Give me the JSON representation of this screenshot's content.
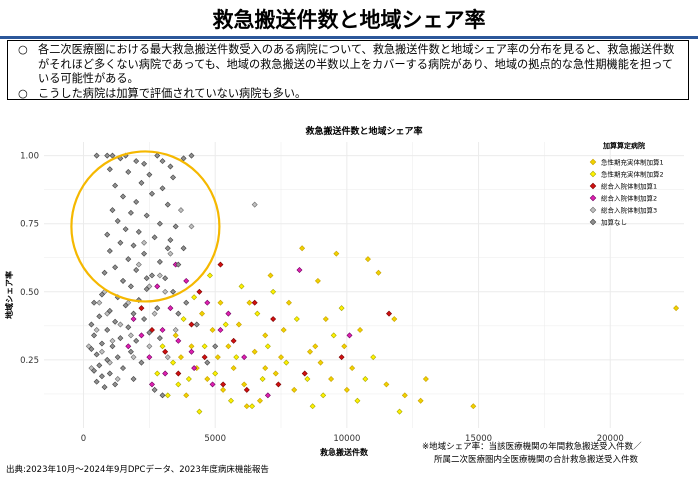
{
  "title": "救急搬送件数と地域シェア率",
  "notes": [
    {
      "mark": "○",
      "text": "各二次医療圏における最大救急搬送件数受入のある病院について、救急搬送件数と地域シェア率の分布を見ると、救急搬送件数がそれほど多くない病院であっても、地域の救急搬送の半数以上をカバーする病院があり、地域の拠点的な急性期機能を担っている可能性がある。"
    },
    {
      "mark": "○",
      "text": "こうした病院は加算で評価されていない病院も多い。"
    }
  ],
  "footer": {
    "source": "出典:2023年10月～2024年9月DPCデータ、2023年度病床機能報告",
    "definition_line1": "※地域シェア率：当該医療機関の年間救急搬送受入件数／",
    "definition_line2": "所属二次医療圏内全医療機関の合計救急搬送受入件数"
  },
  "colors": {
    "title_rule": "#2b579a",
    "highlight_circle": "#f5b800",
    "grid": "#ebebeb"
  },
  "chart_data": {
    "type": "scatter",
    "title": "救急搬送件数と地域シェア率",
    "xlabel": "救急搬送件数",
    "ylabel": "地域シェア率",
    "xlim": [
      -1500,
      22800
    ],
    "ylim": [
      0.0,
      1.05
    ],
    "x_ticks": [
      0,
      5000,
      10000,
      15000,
      20000
    ],
    "y_ticks": [
      0.25,
      0.5,
      0.75,
      1.0
    ],
    "y_tick_labels": [
      "0.25",
      "0.50",
      "0.75",
      "1.00"
    ],
    "grid": true,
    "legend_position": "top-right",
    "legend_title": "加算算定病院",
    "series": [
      {
        "name": "急性期充実体制加算1",
        "color": "#c8a000",
        "fill": "#f0d200",
        "points": [
          [
            22500,
            0.44
          ],
          [
            14800,
            0.08
          ],
          [
            13000,
            0.18
          ],
          [
            12800,
            0.1
          ],
          [
            12200,
            0.12
          ],
          [
            11500,
            0.16
          ],
          [
            11200,
            0.57
          ],
          [
            10800,
            0.62
          ],
          [
            10500,
            0.36
          ],
          [
            10200,
            0.22
          ],
          [
            9900,
            0.3
          ],
          [
            9600,
            0.64
          ],
          [
            9400,
            0.18
          ],
          [
            9200,
            0.4
          ],
          [
            8900,
            0.54
          ],
          [
            8600,
            0.28
          ],
          [
            8300,
            0.66
          ],
          [
            8000,
            0.14
          ],
          [
            7800,
            0.46
          ],
          [
            7500,
            0.26
          ],
          [
            7300,
            0.2
          ],
          [
            7100,
            0.56
          ],
          [
            6900,
            0.34
          ],
          [
            6700,
            0.1
          ],
          [
            6500,
            0.28
          ],
          [
            6300,
            0.46
          ],
          [
            6100,
            0.16
          ],
          [
            5900,
            0.38
          ],
          [
            5700,
            0.22
          ],
          [
            5500,
            0.3
          ],
          [
            5300,
            0.14
          ],
          [
            5100,
            0.26
          ],
          [
            4900,
            0.36
          ],
          [
            4700,
            0.18
          ],
          [
            4500,
            0.42
          ],
          [
            4300,
            0.22
          ],
          [
            4100,
            0.3
          ],
          [
            3900,
            0.12
          ],
          [
            3700,
            0.26
          ],
          [
            3500,
            0.34
          ],
          [
            6900,
            0.22
          ],
          [
            8800,
            0.3
          ],
          [
            10000,
            0.14
          ],
          [
            5200,
            0.46
          ],
          [
            6200,
            0.08
          ],
          [
            7600,
            0.36
          ],
          [
            9000,
            0.24
          ],
          [
            11800,
            0.4
          ]
        ]
      },
      {
        "name": "急性期充実体制加算2",
        "color": "#a8a800",
        "fill": "#fff200",
        "points": [
          [
            12000,
            0.06
          ],
          [
            11000,
            0.26
          ],
          [
            10400,
            0.1
          ],
          [
            9800,
            0.44
          ],
          [
            9100,
            0.12
          ],
          [
            8500,
            0.18
          ],
          [
            8100,
            0.4
          ],
          [
            7700,
            0.24
          ],
          [
            7200,
            0.5
          ],
          [
            6800,
            0.18
          ],
          [
            6400,
            0.08
          ],
          [
            6000,
            0.52
          ],
          [
            5600,
            0.1
          ],
          [
            5400,
            0.38
          ],
          [
            5000,
            0.2
          ],
          [
            4800,
            0.56
          ],
          [
            4600,
            0.3
          ],
          [
            4400,
            0.06
          ],
          [
            4200,
            0.48
          ],
          [
            4000,
            0.18
          ],
          [
            3800,
            0.4
          ],
          [
            3600,
            0.16
          ],
          [
            3400,
            0.24
          ],
          [
            3200,
            0.12
          ],
          [
            3000,
            0.3
          ],
          [
            2800,
            0.2
          ],
          [
            7000,
            0.3
          ],
          [
            8700,
            0.08
          ],
          [
            9500,
            0.34
          ],
          [
            6600,
            0.42
          ],
          [
            5800,
            0.26
          ],
          [
            10700,
            0.18
          ]
        ]
      },
      {
        "name": "総合入院体制加算1",
        "color": "#7a0000",
        "fill": "#d01010",
        "points": [
          [
            11600,
            0.42
          ],
          [
            9800,
            0.26
          ],
          [
            8400,
            0.2
          ],
          [
            7400,
            0.16
          ],
          [
            6500,
            0.46
          ],
          [
            5700,
            0.32
          ],
          [
            5300,
            0.16
          ],
          [
            4600,
            0.26
          ],
          [
            4100,
            0.38
          ],
          [
            3600,
            0.2
          ],
          [
            3100,
            0.28
          ],
          [
            2600,
            0.36
          ],
          [
            2200,
            0.44
          ],
          [
            5200,
            0.6
          ],
          [
            4400,
            0.5
          ],
          [
            6200,
            0.14
          ],
          [
            7200,
            0.4
          ]
        ]
      },
      {
        "name": "総合入院体制加算2",
        "color": "#700060",
        "fill": "#e020b0",
        "points": [
          [
            10100,
            0.34
          ],
          [
            8200,
            0.58
          ],
          [
            7000,
            0.12
          ],
          [
            6100,
            0.26
          ],
          [
            5200,
            0.36
          ],
          [
            4700,
            0.46
          ],
          [
            4200,
            0.22
          ],
          [
            3900,
            0.54
          ],
          [
            3600,
            0.32
          ],
          [
            3300,
            0.44
          ],
          [
            3000,
            0.36
          ],
          [
            2800,
            0.52
          ],
          [
            2500,
            0.26
          ],
          [
            2200,
            0.34
          ],
          [
            1900,
            0.4
          ],
          [
            1700,
            0.3
          ],
          [
            3500,
            0.6
          ],
          [
            4100,
            0.28
          ],
          [
            4900,
            0.16
          ],
          [
            5500,
            0.42
          ],
          [
            2600,
            0.16
          ],
          [
            3100,
            0.2
          ]
        ]
      },
      {
        "name": "総合入院体制加算3",
        "color": "#6a6a6a",
        "fill": "#c0c0c0",
        "points": [
          [
            6500,
            0.82
          ],
          [
            4100,
            0.74
          ],
          [
            3700,
            0.8
          ],
          [
            3300,
            0.64
          ],
          [
            2900,
            0.56
          ],
          [
            2500,
            0.52
          ],
          [
            2100,
            0.6
          ],
          [
            1700,
            0.46
          ],
          [
            1400,
            0.38
          ],
          [
            1100,
            0.32
          ],
          [
            900,
            0.42
          ],
          [
            700,
            0.28
          ],
          [
            500,
            0.36
          ],
          [
            300,
            0.22
          ],
          [
            200,
            0.3
          ],
          [
            2300,
            0.68
          ],
          [
            2700,
            0.42
          ],
          [
            3100,
            0.5
          ],
          [
            3500,
            0.36
          ],
          [
            1900,
            0.26
          ],
          [
            1500,
            0.54
          ],
          [
            1300,
            0.18
          ],
          [
            800,
            0.5
          ],
          [
            2500,
            0.3
          ],
          [
            3200,
            0.26
          ],
          [
            1000,
            0.24
          ],
          [
            600,
            0.46
          ],
          [
            1800,
            0.34
          ]
        ]
      },
      {
        "name": "加算なし",
        "color": "#404040",
        "fill": "#909090",
        "points": [
          [
            500,
            1.0
          ],
          [
            900,
            1.0
          ],
          [
            1100,
            1.0
          ],
          [
            1400,
            0.99
          ],
          [
            1600,
            1.0
          ],
          [
            2000,
            0.98
          ],
          [
            2300,
            0.97
          ],
          [
            2800,
            1.0
          ],
          [
            3000,
            0.98
          ],
          [
            3300,
            0.96
          ],
          [
            3800,
            0.99
          ],
          [
            4100,
            1.0
          ],
          [
            1000,
            0.95
          ],
          [
            1700,
            0.94
          ],
          [
            2500,
            0.93
          ],
          [
            3400,
            0.92
          ],
          [
            2200,
            0.9
          ],
          [
            1200,
            0.89
          ],
          [
            3000,
            0.88
          ],
          [
            2600,
            0.86
          ],
          [
            1500,
            0.85
          ],
          [
            2000,
            0.83
          ],
          [
            3200,
            0.82
          ],
          [
            1100,
            0.8
          ],
          [
            1800,
            0.79
          ],
          [
            2400,
            0.78
          ],
          [
            1300,
            0.76
          ],
          [
            2900,
            0.75
          ],
          [
            3500,
            0.74
          ],
          [
            1600,
            0.73
          ],
          [
            2100,
            0.72
          ],
          [
            900,
            0.71
          ],
          [
            2700,
            0.7
          ],
          [
            3300,
            0.69
          ],
          [
            1400,
            0.68
          ],
          [
            1900,
            0.67
          ],
          [
            3800,
            0.66
          ],
          [
            1000,
            0.65
          ],
          [
            2300,
            0.64
          ],
          [
            1700,
            0.62
          ],
          [
            2900,
            0.61
          ],
          [
            3600,
            0.6
          ],
          [
            1200,
            0.59
          ],
          [
            2000,
            0.58
          ],
          [
            800,
            0.57
          ],
          [
            2600,
            0.56
          ],
          [
            3100,
            0.55
          ],
          [
            1500,
            0.54
          ],
          [
            1800,
            0.52
          ],
          [
            2400,
            0.51
          ],
          [
            3400,
            0.5
          ],
          [
            700,
            0.49
          ],
          [
            1300,
            0.48
          ],
          [
            2100,
            0.47
          ],
          [
            400,
            0.46
          ],
          [
            1600,
            0.45
          ],
          [
            2800,
            0.44
          ],
          [
            1000,
            0.43
          ],
          [
            1900,
            0.42
          ],
          [
            600,
            0.41
          ],
          [
            2300,
            0.4
          ],
          [
            1200,
            0.39
          ],
          [
            300,
            0.38
          ],
          [
            1700,
            0.37
          ],
          [
            900,
            0.36
          ],
          [
            2500,
            0.35
          ],
          [
            400,
            0.34
          ],
          [
            1400,
            0.33
          ],
          [
            2000,
            0.32
          ],
          [
            700,
            0.31
          ],
          [
            1100,
            0.3
          ],
          [
            300,
            0.29
          ],
          [
            1800,
            0.28
          ],
          [
            500,
            0.27
          ],
          [
            1300,
            0.26
          ],
          [
            900,
            0.25
          ],
          [
            2200,
            0.24
          ],
          [
            600,
            0.23
          ],
          [
            1500,
            0.22
          ],
          [
            400,
            0.21
          ],
          [
            1000,
            0.2
          ],
          [
            700,
            0.19
          ],
          [
            1900,
            0.18
          ],
          [
            500,
            0.17
          ],
          [
            1200,
            0.16
          ],
          [
            800,
            0.15
          ],
          [
            2700,
            0.14
          ],
          [
            3000,
            0.12
          ],
          [
            2400,
            0.55
          ],
          [
            3600,
            0.42
          ],
          [
            2900,
            0.33
          ],
          [
            5000,
            0.3
          ],
          [
            4300,
            0.38
          ],
          [
            3900,
            0.46
          ],
          [
            4700,
            0.24
          ],
          [
            3200,
            0.66
          ]
        ]
      }
    ]
  }
}
